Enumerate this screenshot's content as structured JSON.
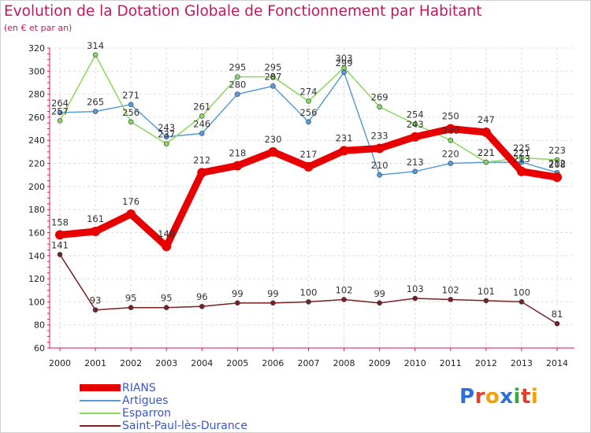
{
  "title": "Evolution de la Dotation Globale de Fonctionnement par Habitant",
  "subtitle": "(en € et par an)",
  "logo": {
    "text": "Proxiti",
    "colors": [
      "#2e6fd8",
      "#e0402a",
      "#f2a007",
      "#2e6fd8",
      "#3aa646",
      "#e0402a",
      "#f2a007"
    ]
  },
  "chart_data": {
    "type": "line",
    "x": [
      "2000",
      "2001",
      "2002",
      "2003",
      "2004",
      "2005",
      "2006",
      "2007",
      "2008",
      "2009",
      "2010",
      "2011",
      "2012",
      "2013",
      "2014"
    ],
    "ylim": [
      60,
      320
    ],
    "yticks": [
      60,
      80,
      100,
      120,
      140,
      160,
      180,
      200,
      220,
      240,
      260,
      280,
      300,
      320
    ],
    "grid": true,
    "legend_position": "bottom-left",
    "series": [
      {
        "name": "Artigues",
        "color": "#5b9bd5",
        "values": [
          264,
          265,
          271,
          243,
          246,
          280,
          287,
          256,
          299,
          210,
          213,
          220,
          221,
          221,
          212
        ]
      },
      {
        "name": "Esparron",
        "color": "#8cd65c",
        "values": [
          257,
          314,
          256,
          237,
          261,
          295,
          295,
          274,
          303,
          269,
          254,
          240,
          221,
          225,
          223
        ]
      },
      {
        "name": "Saint-Paul-lès-Durance",
        "color": "#7a2020",
        "values": [
          141,
          93,
          95,
          95,
          96,
          99,
          99,
          100,
          102,
          99,
          103,
          102,
          101,
          100,
          81
        ]
      },
      {
        "name": "RIANS",
        "color": "#e80000",
        "values": [
          158,
          161,
          176,
          148,
          212,
          218,
          230,
          217,
          231,
          233,
          243,
          250,
          247,
          213,
          208
        ]
      }
    ],
    "legend_order": [
      "RIANS",
      "Artigues",
      "Esparron",
      "Saint-Paul-lès-Durance"
    ]
  }
}
